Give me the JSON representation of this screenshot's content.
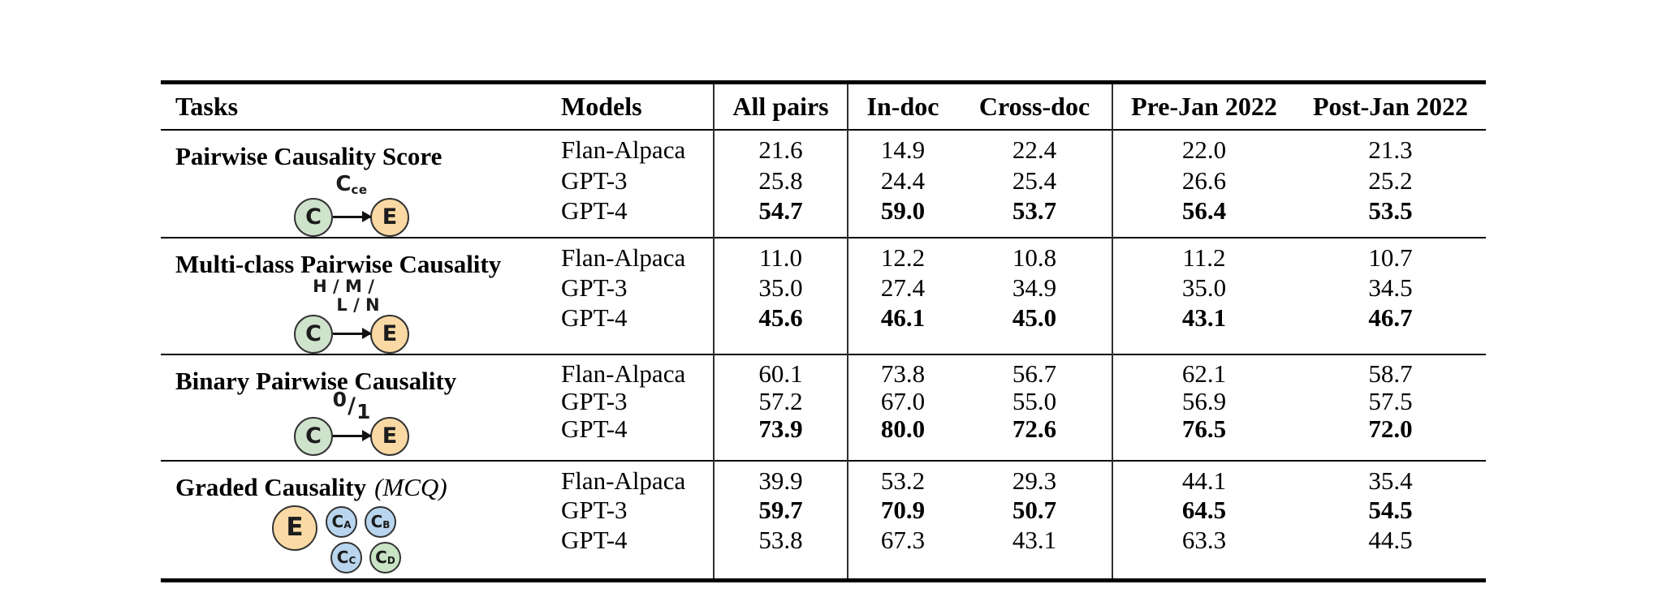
{
  "colors": {
    "cause_fill": "#cfe3cc",
    "effect_fill": "#fad9a4",
    "choice_fill": "#b9d5ee",
    "correct_fill": "#c9e4c5",
    "node_border": "#333333",
    "rule": "#000000",
    "separator": "#2f2f2f",
    "text": "#000000"
  },
  "table": {
    "headers": {
      "tasks": "Tasks",
      "models": "Models",
      "all_pairs": "All pairs",
      "in_doc": "In-doc",
      "cross_doc": "Cross-doc",
      "pre": "Pre-Jan 2022",
      "post": "Post-Jan 2022"
    },
    "groups": [
      {
        "title": "Pairwise Causality Score",
        "diagram": {
          "cause": "C",
          "effect": "E",
          "label_main": "C",
          "label_sub": "ce"
        },
        "rows": [
          {
            "model": "Flan-Alpaca",
            "bold": false,
            "values": [
              "21.6",
              "14.9",
              "22.4",
              "22.0",
              "21.3"
            ]
          },
          {
            "model": "GPT-3",
            "bold": false,
            "values": [
              "25.8",
              "24.4",
              "25.4",
              "26.6",
              "25.2"
            ]
          },
          {
            "model": "GPT-4",
            "bold": true,
            "values": [
              "54.7",
              "59.0",
              "53.7",
              "56.4",
              "53.5"
            ]
          }
        ]
      },
      {
        "title": "Multi-class Pairwise Causality",
        "diagram": {
          "cause": "C",
          "effect": "E",
          "label_line1": "H / M /",
          "label_line2": "L / N"
        },
        "rows": [
          {
            "model": "Flan-Alpaca",
            "bold": false,
            "values": [
              "11.0",
              "12.2",
              "10.8",
              "11.2",
              "10.7"
            ]
          },
          {
            "model": "GPT-3",
            "bold": false,
            "values": [
              "35.0",
              "27.4",
              "34.9",
              "35.0",
              "34.5"
            ]
          },
          {
            "model": "GPT-4",
            "bold": true,
            "values": [
              "45.6",
              "46.1",
              "45.0",
              "43.1",
              "46.7"
            ]
          }
        ]
      },
      {
        "title": "Binary Pairwise Causality",
        "diagram": {
          "cause": "C",
          "effect": "E",
          "label_num": "0",
          "label_slash": "/",
          "label_den": "1"
        },
        "rows": [
          {
            "model": "Flan-Alpaca",
            "bold": false,
            "values": [
              "60.1",
              "73.8",
              "56.7",
              "62.1",
              "58.7"
            ]
          },
          {
            "model": "GPT-3",
            "bold": false,
            "values": [
              "57.2",
              "67.0",
              "55.0",
              "56.9",
              "57.5"
            ]
          },
          {
            "model": "GPT-4",
            "bold": true,
            "values": [
              "73.9",
              "80.0",
              "72.6",
              "76.5",
              "72.0"
            ]
          }
        ]
      },
      {
        "title": "Graded Causality",
        "title_suffix": "(MCQ)",
        "diagram": {
          "effect": "E",
          "choices": [
            {
              "main": "C",
              "sub": "A"
            },
            {
              "main": "C",
              "sub": "B"
            },
            {
              "main": "C",
              "sub": "C"
            },
            {
              "main": "C",
              "sub": "D"
            }
          ]
        },
        "rows": [
          {
            "model": "Flan-Alpaca",
            "bold": false,
            "values": [
              "39.9",
              "53.2",
              "29.3",
              "44.1",
              "35.4"
            ]
          },
          {
            "model": "GPT-3",
            "bold": true,
            "values": [
              "59.7",
              "70.9",
              "50.7",
              "64.5",
              "54.5"
            ]
          },
          {
            "model": "GPT-4",
            "bold": false,
            "values": [
              "53.8",
              "67.3",
              "43.1",
              "63.3",
              "44.5"
            ]
          }
        ]
      }
    ]
  }
}
